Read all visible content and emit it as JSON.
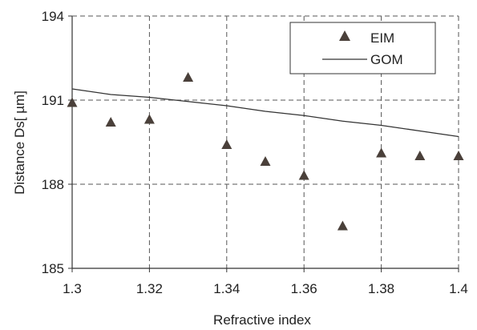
{
  "chart_data": {
    "type": "scatter",
    "xlabel": "Refractive index",
    "ylabel": "Distance Ds[ µm]",
    "xlim": [
      1.3,
      1.4
    ],
    "ylim": [
      185,
      194
    ],
    "xticks": [
      1.3,
      1.32,
      1.34,
      1.36,
      1.38,
      1.4
    ],
    "xtick_labels": [
      "1.3",
      "1.32",
      "1.34",
      "1.36",
      "1.38",
      "1.4"
    ],
    "yticks": [
      185,
      188,
      191,
      194
    ],
    "ytick_labels": [
      "185",
      "188",
      "191",
      "194"
    ],
    "grid": "dashed",
    "legend_position": "top-right",
    "series": [
      {
        "name": "EIM",
        "kind": "markers",
        "marker": "triangle",
        "color": "#4a403a",
        "x": [
          1.3,
          1.31,
          1.32,
          1.33,
          1.34,
          1.35,
          1.36,
          1.37,
          1.38,
          1.39,
          1.4
        ],
        "y": [
          190.9,
          190.2,
          190.3,
          191.8,
          189.4,
          188.8,
          188.3,
          186.5,
          189.1,
          189.0,
          189.0
        ]
      },
      {
        "name": "GOM",
        "kind": "line",
        "color": "#333333",
        "x": [
          1.3,
          1.31,
          1.32,
          1.33,
          1.34,
          1.35,
          1.36,
          1.37,
          1.38,
          1.39,
          1.4
        ],
        "y": [
          191.4,
          191.2,
          191.1,
          190.95,
          190.8,
          190.6,
          190.45,
          190.25,
          190.1,
          189.9,
          189.7
        ]
      }
    ]
  }
}
